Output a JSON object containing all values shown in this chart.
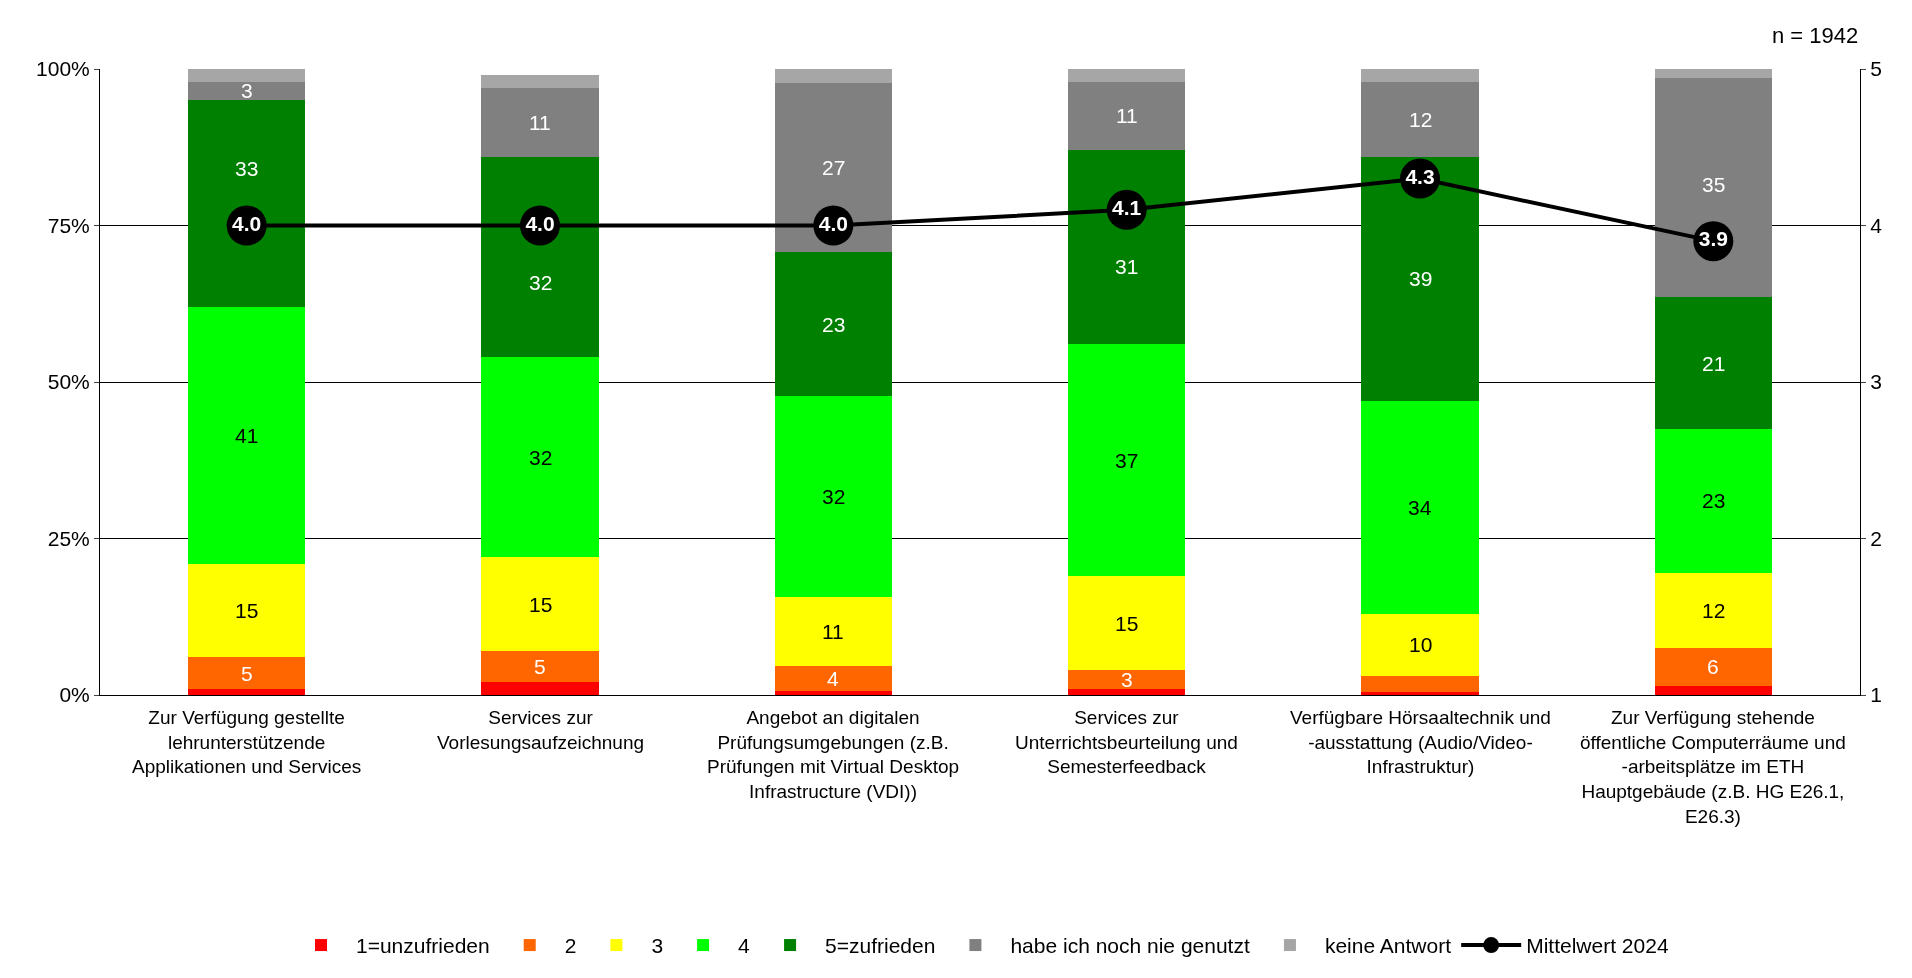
{
  "chart_data": {
    "type": "bar",
    "stacked": true,
    "categories": [
      "Zur Verfügung gestellte lehrunterstützende Applikationen und Services",
      "Services zur Vorlesungsaufzeichnung",
      "Angebot an digitalen Prüfungsumgebungen (z.B. Prüfungen mit Virtual Desktop Infrastructure (VDI))",
      "Services zur Unterrichtsbeurteilung und Semesterfeedback",
      "Verfügbare Hörsaaltechnik und -ausstattung (Audio/Video- Infrastruktur)",
      "Zur Verfügung stehende öffentliche Computerräume und -arbeitsplätze im ETH Hauptgebäude (z.B. HG E26.1, E26.3)"
    ],
    "series": [
      {
        "name": "1=unzufrieden",
        "color": "#ff0000",
        "values": [
          1,
          2,
          0.7,
          1,
          0.5,
          1.5
        ],
        "value_labels": [
          null,
          null,
          null,
          null,
          null,
          null
        ]
      },
      {
        "name": "2",
        "color": "#ff6600",
        "values": [
          5,
          5,
          4,
          3,
          2.5,
          6
        ],
        "value_labels": [
          "5",
          "5",
          "4",
          "3",
          null,
          "6"
        ]
      },
      {
        "name": "3",
        "color": "#ffff00",
        "values": [
          15,
          15,
          11,
          15,
          10,
          12
        ],
        "value_labels": [
          "15",
          "15",
          "11",
          "15",
          "10",
          "12"
        ]
      },
      {
        "name": "4",
        "color": "#00ff00",
        "values": [
          41,
          32,
          32,
          37,
          34,
          23
        ],
        "value_labels": [
          "41",
          "32",
          "32",
          "37",
          "34",
          "23"
        ]
      },
      {
        "name": "5=zufrieden",
        "color": "#008000",
        "values": [
          33,
          32,
          23,
          31,
          39,
          21
        ],
        "value_labels": [
          "33",
          "32",
          "23",
          "31",
          "39",
          "21"
        ]
      },
      {
        "name": "habe ich noch nie genutzt",
        "color": "#808080",
        "values": [
          3,
          11,
          27,
          11,
          12,
          35
        ],
        "value_labels": [
          "3",
          "11",
          "27",
          "11",
          "12",
          "35"
        ]
      },
      {
        "name": "keine Antwort",
        "color": "#a6a6a6",
        "values": [
          2,
          2,
          2.3,
          2,
          2,
          1.5
        ],
        "value_labels": [
          null,
          null,
          null,
          null,
          null,
          null
        ]
      },
      {
        "name": "Mittelwert 2024",
        "type": "line",
        "axis": "y2",
        "color": "#000000",
        "marker": "circle",
        "values": [
          4.0,
          4.0,
          4.0,
          4.1,
          4.3,
          3.9
        ],
        "value_labels": [
          "4.0",
          "4.0",
          "4.0",
          "4.1",
          "4.3",
          "3.9"
        ]
      }
    ],
    "ylim": [
      0,
      100
    ],
    "yticks": [
      {
        "value": 0,
        "label": "0%"
      },
      {
        "value": 25,
        "label": "25%"
      },
      {
        "value": 50,
        "label": "50%"
      },
      {
        "value": 75,
        "label": "75%"
      },
      {
        "value": 100,
        "label": "100%"
      }
    ],
    "y2lim": [
      1,
      5
    ],
    "y2ticks": [
      1,
      2,
      3,
      4,
      5
    ],
    "grid": "y",
    "legend": "bottom",
    "annotations": [
      "n = 1942"
    ]
  }
}
